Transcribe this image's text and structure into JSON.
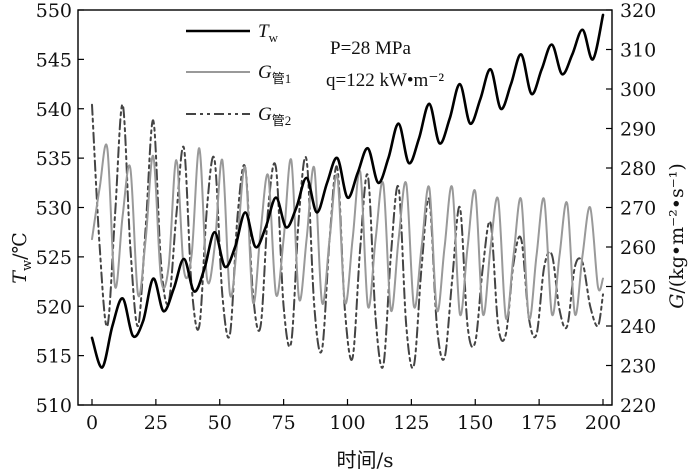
{
  "chart_data": {
    "type": "line",
    "x_label": "时间/s",
    "x_ticks": [
      0,
      25,
      50,
      75,
      100,
      125,
      150,
      175,
      200
    ],
    "xlim": [
      0,
      200
    ],
    "left_axis": {
      "label_main": "T",
      "label_sub": "w",
      "label_unit": "/℃",
      "ticks": [
        510,
        515,
        520,
        525,
        530,
        535,
        540,
        545,
        550
      ],
      "ylim": [
        510,
        550
      ]
    },
    "right_axis": {
      "label_main": "G",
      "label_unit": "/(kg•m⁻²•s⁻¹)",
      "ticks": [
        220,
        230,
        240,
        250,
        260,
        270,
        280,
        290,
        300,
        310,
        320
      ],
      "ylim": [
        220,
        320
      ]
    },
    "annotations": {
      "pressure": "P=28 MPa",
      "heat_flux": "q=122 kW•m⁻²"
    },
    "legend_position": "top-center",
    "series": [
      {
        "name": "Tw",
        "legend_main": "T",
        "legend_sub": "w",
        "axis": "left",
        "style": "solid-black",
        "x": [
          0,
          4,
          8,
          12,
          16,
          20,
          24,
          28,
          32,
          36,
          40,
          44,
          48,
          52,
          56,
          60,
          64,
          68,
          72,
          76,
          80,
          84,
          88,
          92,
          96,
          100,
          104,
          108,
          112,
          116,
          120,
          124,
          128,
          132,
          136,
          140,
          144,
          148,
          152,
          156,
          160,
          164,
          168,
          172,
          176,
          180,
          184,
          188,
          192,
          196,
          200
        ],
        "values": [
          516.8,
          513.8,
          518.0,
          520.8,
          517.0,
          518.5,
          522.8,
          519.5,
          521.8,
          524.8,
          521.5,
          523.8,
          527.5,
          524.0,
          526.0,
          529.5,
          526.0,
          528.0,
          531.0,
          528.0,
          530.0,
          533.0,
          529.5,
          532.5,
          535.0,
          531.0,
          533.5,
          536.0,
          532.5,
          535.0,
          538.5,
          534.5,
          537.0,
          540.5,
          536.5,
          539.0,
          542.5,
          538.5,
          541.0,
          544.0,
          540.0,
          542.5,
          545.5,
          541.5,
          544.0,
          546.5,
          543.5,
          545.5,
          548.0,
          545.0,
          549.5
        ]
      },
      {
        "name": "G管1",
        "legend_main": "G",
        "legend_sub": "管1",
        "axis": "right",
        "style": "solid-gray",
        "x": [
          0,
          3,
          6,
          9,
          12,
          15,
          18,
          21,
          24,
          27,
          30,
          33,
          36,
          39,
          42,
          45,
          48,
          51,
          54,
          57,
          60,
          63,
          66,
          69,
          72,
          75,
          78,
          81,
          84,
          87,
          90,
          93,
          96,
          99,
          102,
          105,
          108,
          111,
          114,
          117,
          120,
          123,
          126,
          129,
          132,
          135,
          138,
          141,
          144,
          147,
          150,
          153,
          156,
          159,
          162,
          165,
          168,
          171,
          174,
          177,
          180,
          183,
          186,
          189,
          192,
          195,
          198,
          200
        ],
        "values": [
          262,
          275,
          285,
          250,
          268,
          280,
          248,
          262,
          283,
          252,
          255,
          282,
          254,
          258,
          285,
          252,
          260,
          282,
          248,
          262,
          280,
          246,
          264,
          278,
          248,
          262,
          282,
          247,
          262,
          280,
          246,
          262,
          278,
          246,
          262,
          279,
          245,
          262,
          276,
          244,
          262,
          276,
          245,
          260,
          275,
          244,
          260,
          275,
          243,
          260,
          274,
          243,
          260,
          272,
          242,
          258,
          272,
          242,
          258,
          272,
          243,
          258,
          271,
          243,
          258,
          270,
          250,
          252
        ]
      },
      {
        "name": "G管2",
        "legend_main": "G",
        "legend_sub": "管2",
        "axis": "right",
        "style": "dash-dot-dark",
        "x": [
          0,
          3,
          6,
          9,
          12,
          15,
          18,
          21,
          24,
          27,
          30,
          33,
          36,
          39,
          42,
          45,
          48,
          51,
          54,
          57,
          60,
          63,
          66,
          69,
          72,
          75,
          78,
          81,
          84,
          87,
          90,
          93,
          96,
          99,
          102,
          105,
          108,
          111,
          114,
          117,
          120,
          123,
          126,
          129,
          132,
          135,
          138,
          141,
          144,
          147,
          150,
          153,
          156,
          159,
          162,
          165,
          168,
          171,
          174,
          177,
          180,
          183,
          186,
          189,
          192,
          195,
          198,
          200
        ],
        "values": [
          296,
          260,
          240,
          268,
          296,
          260,
          240,
          265,
          292,
          256,
          246,
          268,
          285,
          250,
          240,
          270,
          282,
          248,
          238,
          268,
          280,
          248,
          240,
          270,
          280,
          245,
          236,
          268,
          282,
          245,
          234,
          262,
          280,
          244,
          232,
          260,
          278,
          242,
          230,
          258,
          275,
          240,
          230,
          255,
          272,
          240,
          232,
          252,
          270,
          240,
          236,
          255,
          266,
          240,
          238,
          256,
          262,
          242,
          238,
          255,
          258,
          244,
          240,
          255,
          256,
          245,
          240,
          248
        ]
      }
    ]
  }
}
